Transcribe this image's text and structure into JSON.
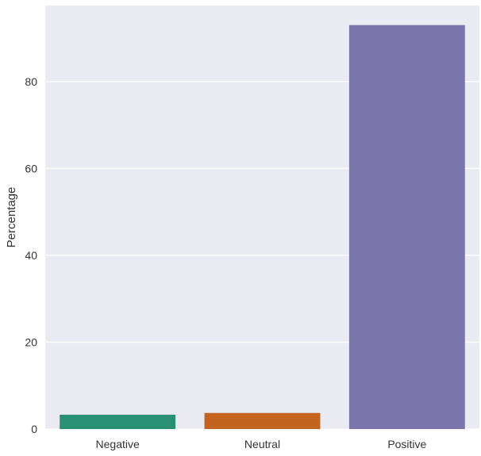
{
  "chart_data": {
    "type": "bar",
    "title": "",
    "xlabel": "",
    "ylabel": "Percentage",
    "categories": [
      "Negative",
      "Neutral",
      "Positive"
    ],
    "values": [
      3.3,
      3.7,
      93.0
    ],
    "colors": [
      "#2a9073",
      "#c2631f",
      "#7a75aa"
    ],
    "ylim": [
      0,
      97.5
    ],
    "yticks": [
      0,
      20,
      40,
      60,
      80
    ],
    "grid": true,
    "background": "#eaeaf2",
    "grid_color": "#ffffff"
  }
}
